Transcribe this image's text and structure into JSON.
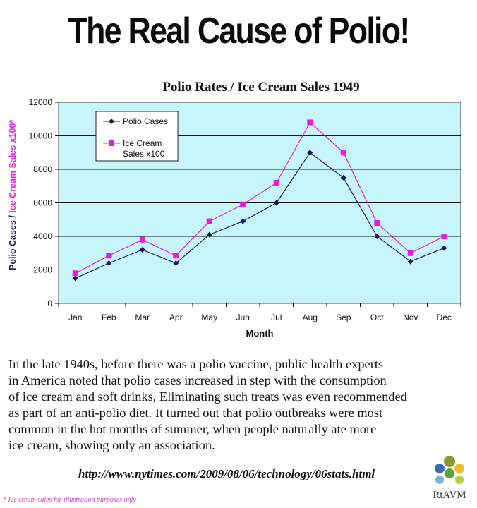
{
  "headline": "The Real Cause of Polio!",
  "chart_data": {
    "type": "line",
    "title": "Polio Rates / Ice Cream Sales 1949",
    "xlabel": "Month",
    "ylabel_part1": "Polio Cases / ",
    "ylabel_part2": "Ice Cream Sales x100*",
    "categories": [
      "Jan",
      "Feb",
      "Mar",
      "Apr",
      "May",
      "Jun",
      "Jul",
      "Aug",
      "Sep",
      "Oct",
      "Nov",
      "Dec"
    ],
    "ylim": [
      0,
      12000
    ],
    "yticks": [
      0,
      2000,
      4000,
      6000,
      8000,
      10000,
      12000
    ],
    "grid": true,
    "legend_position": "top-left",
    "series": [
      {
        "name": "Polio Cases",
        "color": "#1a1466",
        "marker": "diamond",
        "values": [
          1500,
          2400,
          3200,
          2400,
          4100,
          4900,
          6000,
          9000,
          7500,
          4000,
          2500,
          3300
        ]
      },
      {
        "name_line1": "Ice Cream",
        "name_line2": "Sales x100",
        "color": "#e619e6",
        "marker": "square",
        "values": [
          1800,
          2850,
          3800,
          2850,
          4900,
          5900,
          7200,
          10800,
          9000,
          4800,
          3000,
          4000
        ]
      }
    ],
    "plot_background": "#c6f6f9"
  },
  "body_lines": [
    "In the late 1940s, before there was a polio vaccine, public health experts",
    "in America noted that polio cases increased in step with the consumption",
    "of ice cream and soft drinks, Eliminating such treats was even recommended",
    "as part of an anti-polio diet. It turned out that polio outbreaks were most",
    "common in the hot months of summer, when people naturally ate more",
    "ice cream, showing only an association."
  ],
  "url": "http://www.nytimes.com/2009/08/06/technology/06stats.html",
  "footnote": "* Ice cream sales for illustration purposes only",
  "logo": {
    "text": "RtAVM",
    "icon": "colored-dots-logo-icon"
  }
}
